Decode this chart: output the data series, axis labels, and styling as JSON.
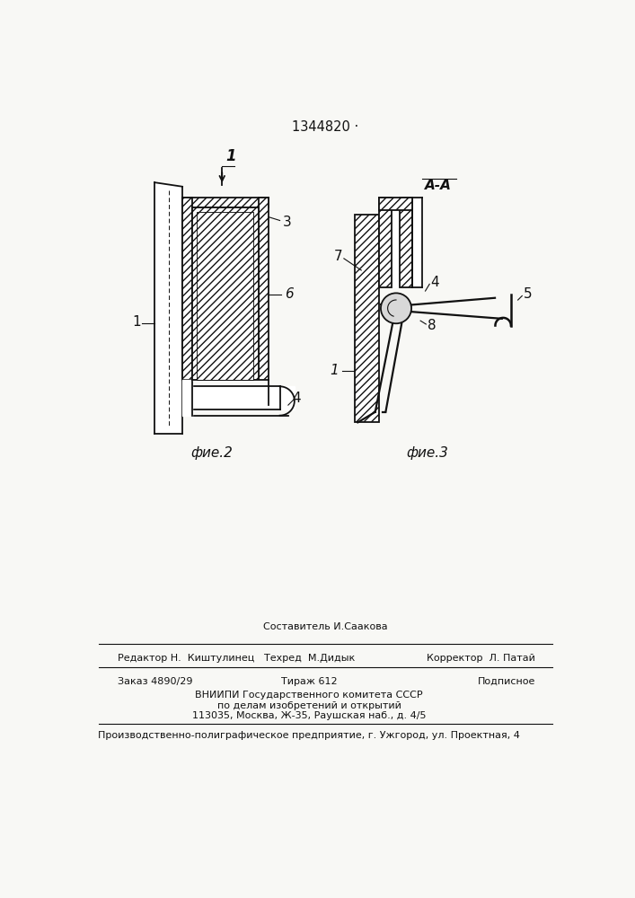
{
  "title": "1344820 ·",
  "bg_color": "#f8f8f5",
  "fig2_label": "фие.2",
  "fig3_label": "фие.3",
  "fig3_section_label": "A-A",
  "footer_line1_center": "Составитель И.Саакова",
  "footer_line1_left": "Редактор Н.  Киштулинец",
  "footer_line2_center": "Техред  М.Дидык",
  "footer_line2_right": "Корректор  Л. Патай",
  "footer_line3_left": "Заказ 4890/29",
  "footer_line3_center": "Тираж 612",
  "footer_line3_right": "Подписное",
  "footer_line4": "ВНИИПИ Государственного комитета СССР",
  "footer_line5": "по делам изобретений и открытий",
  "footer_line6": "113035, Москва, Ж-35, Раушская наб., д. 4/5",
  "footer_last": "Производственно-полиграфическое предприятие, г. Ужгород, ул. Проектная, 4"
}
